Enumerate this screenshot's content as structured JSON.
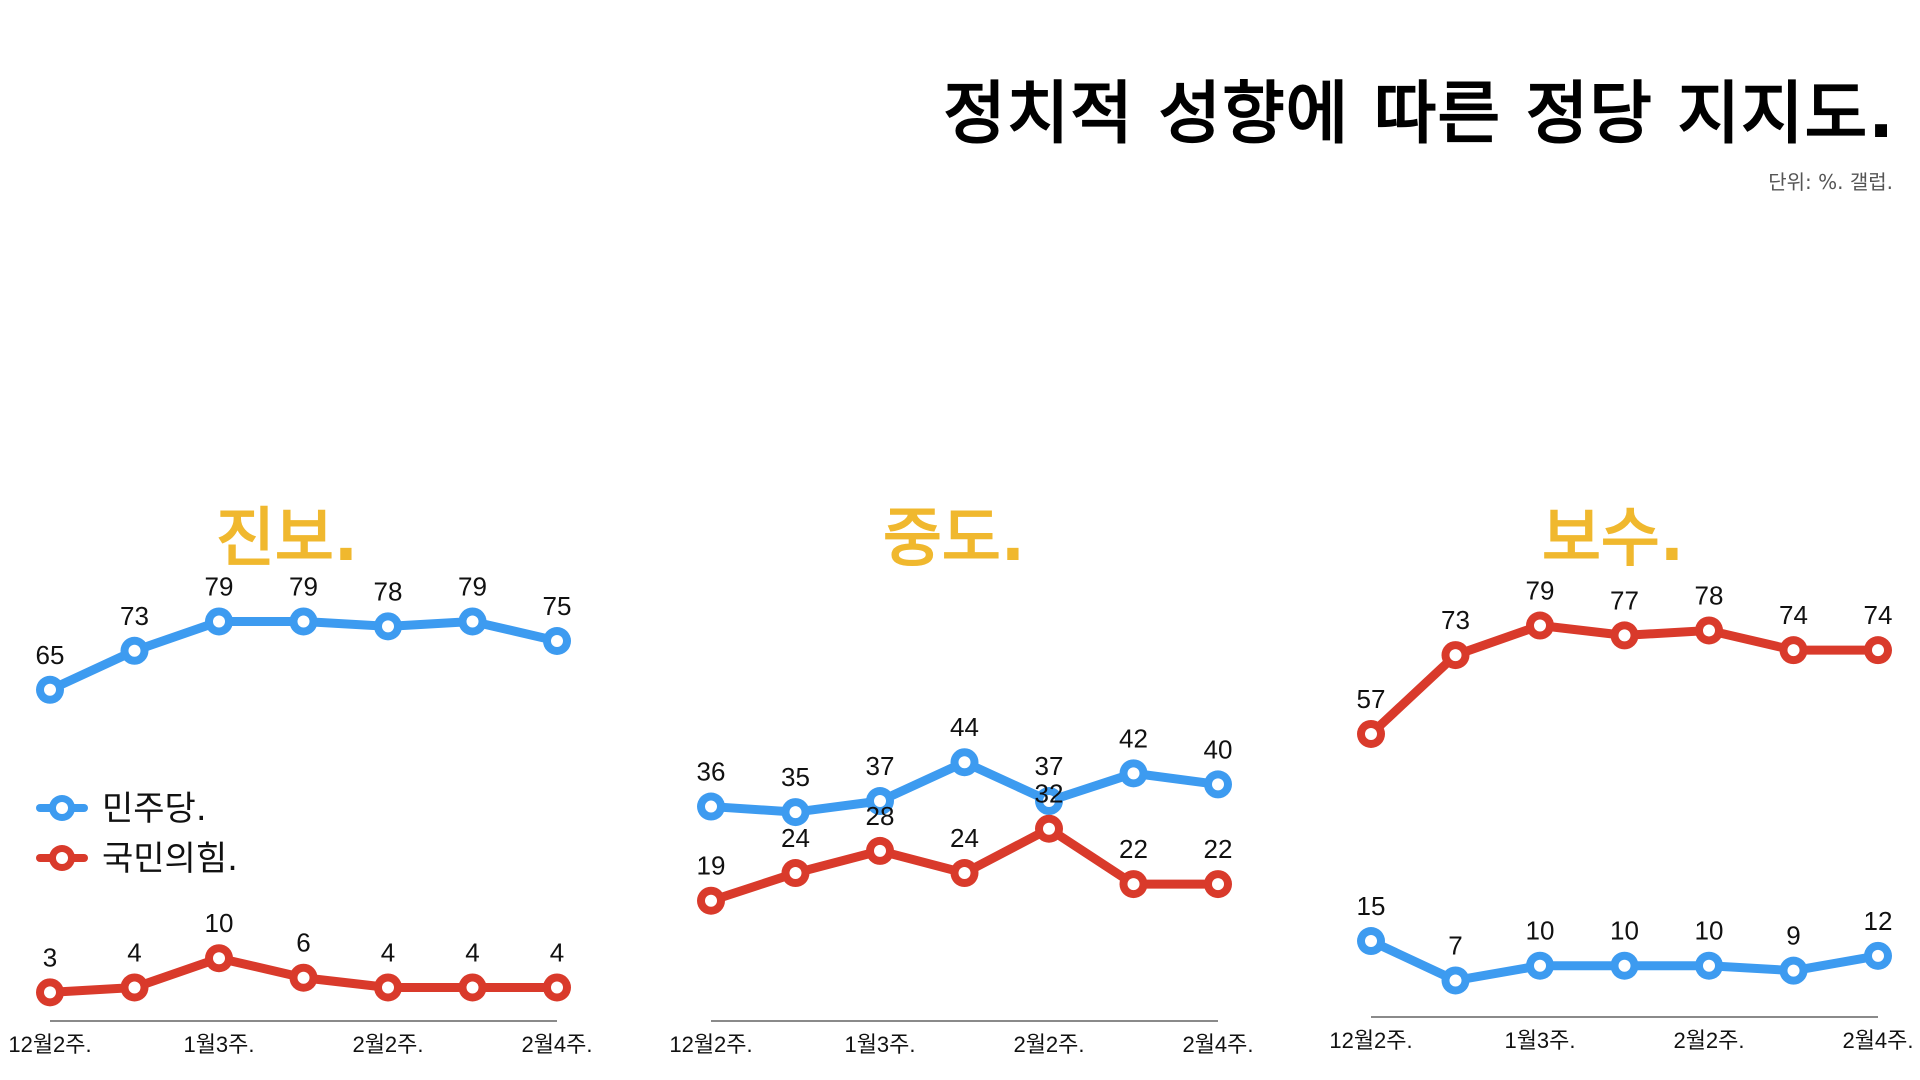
{
  "title": "정치적 성향에 따른 정당 지지도.",
  "unit_note": "단위: %. 갤럽.",
  "colors": {
    "democratic": "#3D9BF0",
    "ppp": "#D93A2B",
    "panel_title": "#F0B82E"
  },
  "legend": [
    {
      "label": "민주당.",
      "color": "#3D9BF0"
    },
    {
      "label": "국민의힘.",
      "color": "#D93A2B"
    }
  ],
  "chart_data": [
    {
      "type": "line",
      "title": "진보.",
      "x": [
        "12월2주.",
        "",
        "1월3주.",
        "",
        "2월2주.",
        "",
        "2월4주."
      ],
      "tick_labels": [
        "12월2주.",
        "1월3주.",
        "2월2주.",
        "2월4주."
      ],
      "series": [
        {
          "name": "민주당.",
          "values": [
            65,
            73,
            79,
            79,
            78,
            79,
            75
          ]
        },
        {
          "name": "국민의힘.",
          "values": [
            3,
            4,
            10,
            6,
            4,
            4,
            4
          ]
        }
      ],
      "legend_position": "bottom-left"
    },
    {
      "type": "line",
      "title": "중도.",
      "x": [
        "12월2주.",
        "",
        "1월3주.",
        "",
        "2월2주.",
        "",
        "2월4주."
      ],
      "tick_labels": [
        "12월2주.",
        "1월3주.",
        "2월2주.",
        "2월4주."
      ],
      "series": [
        {
          "name": "민주당.",
          "values": [
            36,
            35,
            37,
            44,
            37,
            42,
            40
          ]
        },
        {
          "name": "국민의힘.",
          "values": [
            19,
            24,
            28,
            24,
            32,
            22,
            22
          ]
        }
      ]
    },
    {
      "type": "line",
      "title": "보수.",
      "x": [
        "12월2주.",
        "",
        "1월3주.",
        "",
        "2월2주.",
        "",
        "2월4주."
      ],
      "tick_labels": [
        "12월2주.",
        "1월3주.",
        "2월2주.",
        "2월4주."
      ],
      "series": [
        {
          "name": "민주당.",
          "values": [
            15,
            7,
            10,
            10,
            10,
            9,
            12
          ]
        },
        {
          "name": "국민의힘.",
          "values": [
            57,
            73,
            79,
            77,
            78,
            74,
            74
          ]
        }
      ]
    }
  ]
}
